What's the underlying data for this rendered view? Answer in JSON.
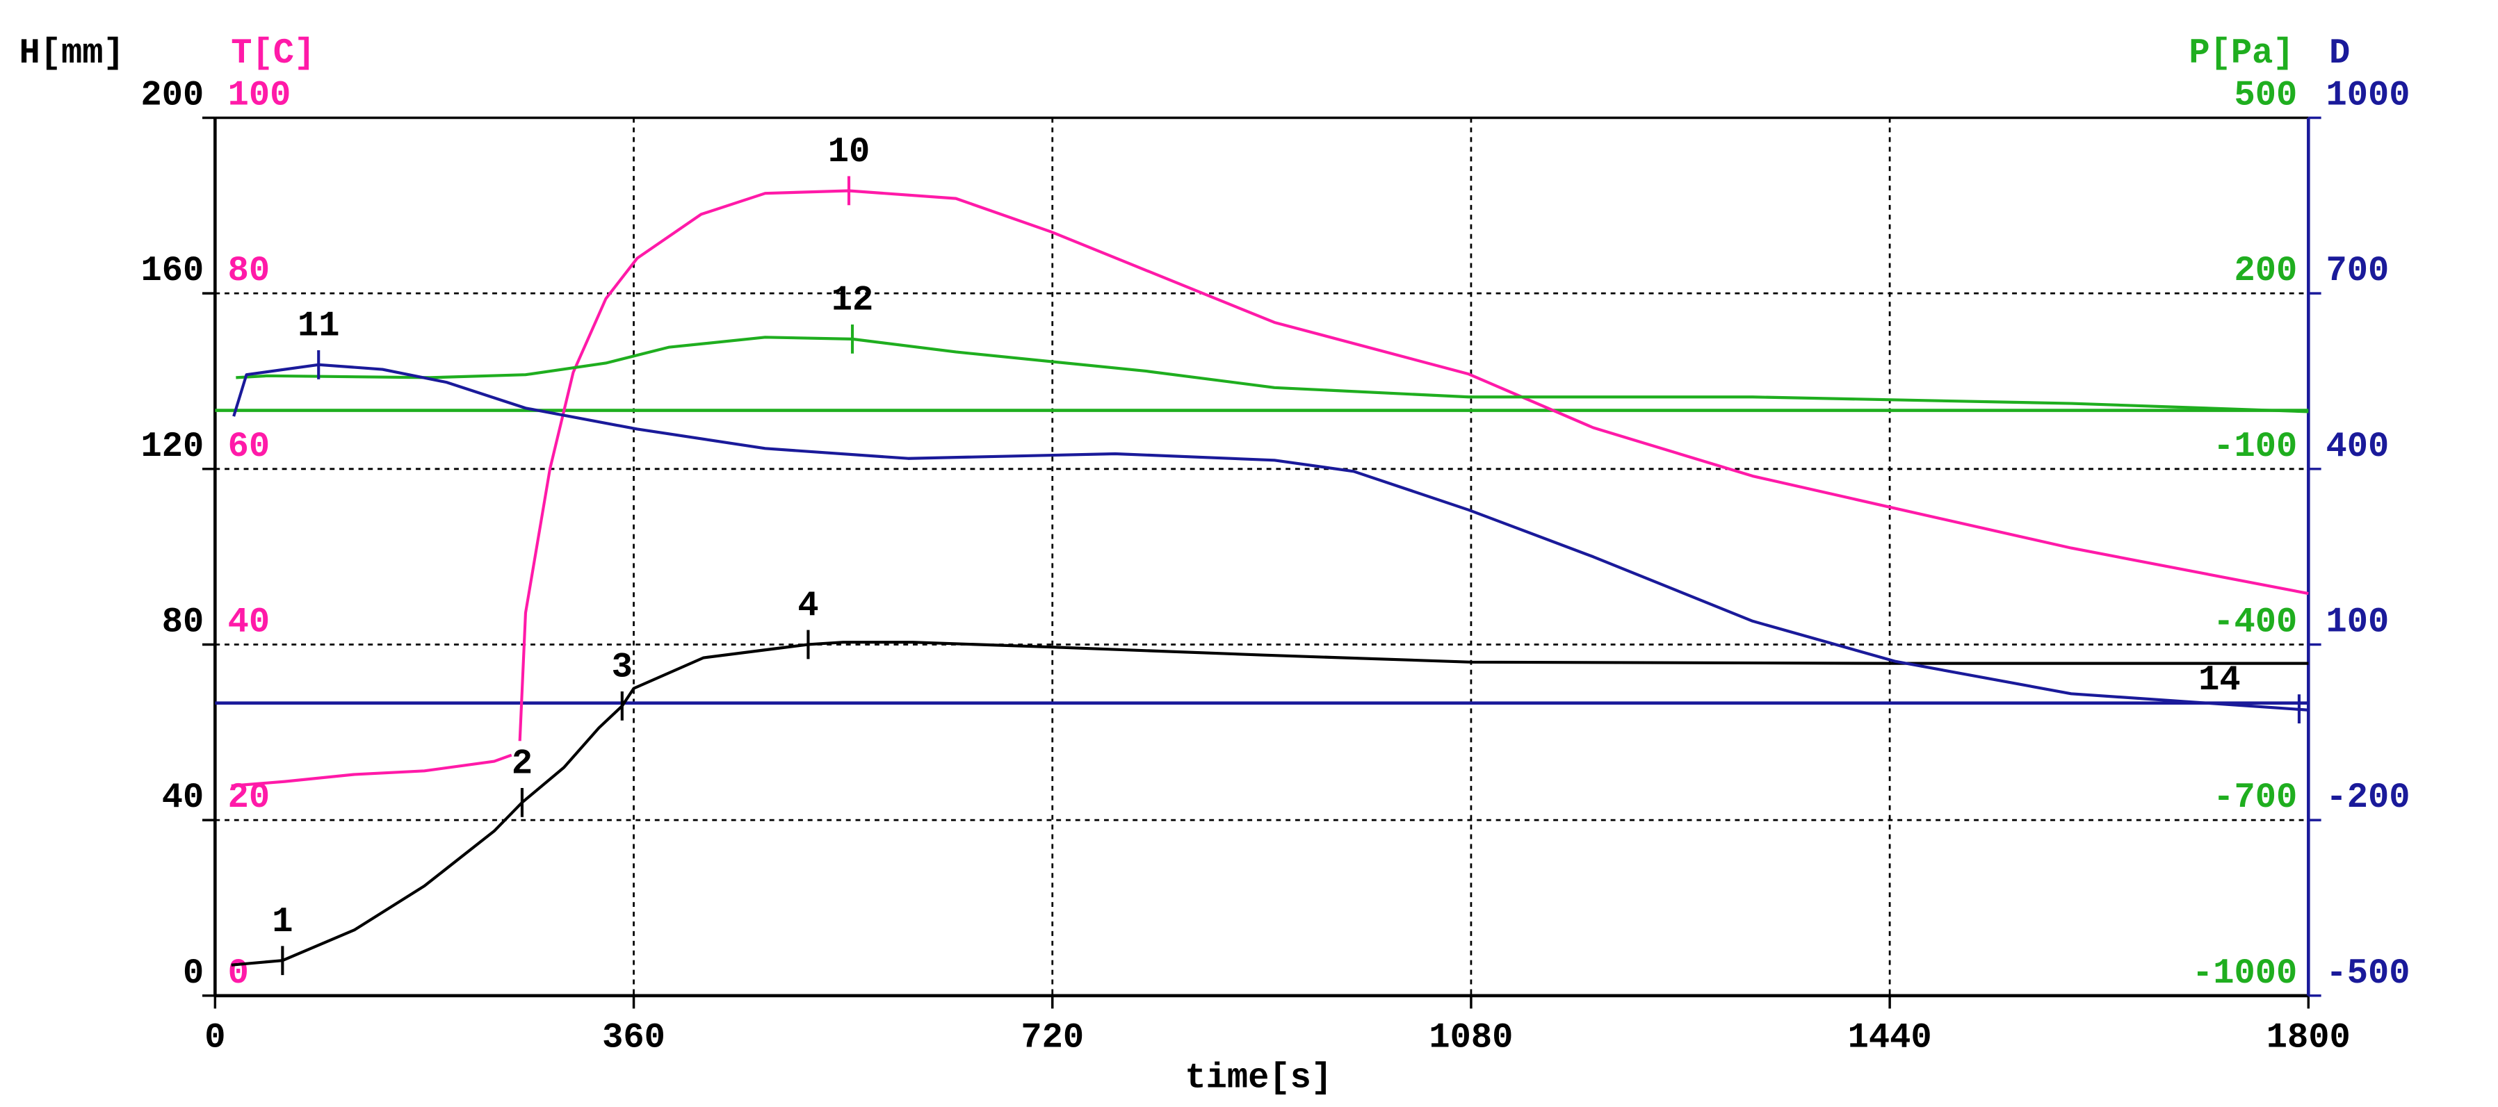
{
  "chart_data": {
    "type": "line",
    "x_label": "time[s]",
    "xlim": [
      0,
      1800
    ],
    "xticks": [
      0,
      360,
      720,
      1080,
      1440,
      1800
    ],
    "grid": true,
    "y_axes": [
      {
        "label": "H[mm]",
        "color": "#000000",
        "side": "left",
        "lim": [
          0,
          200
        ],
        "ticks": [
          0,
          40,
          80,
          120,
          160,
          200
        ]
      },
      {
        "label": "T[C]",
        "color": "#ff1aa8",
        "side": "left",
        "lim": [
          0,
          100
        ],
        "ticks": [
          0,
          20,
          40,
          60,
          80,
          100
        ]
      },
      {
        "label": "P[Pa]",
        "color": "#1fae1f",
        "side": "right",
        "lim": [
          -1000,
          500
        ],
        "ticks": [
          -1000,
          -700,
          -400,
          -100,
          200,
          500
        ]
      },
      {
        "label": "D",
        "color": "#1a1a9a",
        "side": "right",
        "lim": [
          -500,
          1000
        ],
        "ticks": [
          -500,
          -200,
          100,
          400,
          700,
          1000
        ]
      }
    ],
    "series": [
      {
        "axis": 0,
        "color": "#000000",
        "x": [
          14,
          58,
          120,
          180,
          240,
          264,
          300,
          330,
          350,
          360,
          420,
          480,
          510,
          540,
          600,
          720,
          900,
          1080,
          1440,
          1800
        ],
        "values": [
          7,
          8,
          15,
          25,
          37.5,
          44,
          52,
          61,
          66,
          70,
          77,
          79,
          80,
          80.5,
          80.5,
          79.4,
          77.6,
          76,
          75.7,
          75.7
        ]
      },
      {
        "axis": 1,
        "color": "#ff1aa8",
        "x": [
          14,
          60,
          120,
          180,
          240,
          255,
          258,
          262,
          267,
          288,
          308,
          336,
          363,
          418,
          473,
          545,
          637,
          719,
          911,
          1078,
          1185,
          1322,
          1445,
          1596,
          1800
        ],
        "values": [
          23.9,
          24.4,
          25.2,
          25.6,
          26.7,
          27.4,
          null,
          29,
          43.6,
          60,
          71,
          79.4,
          84,
          89,
          91.4,
          91.7,
          90.8,
          87,
          76.7,
          70.8,
          64.7,
          59.2,
          55.5,
          51,
          45.8
        ]
      },
      {
        "axis": 2,
        "color": "#1fae1f",
        "x": [
          18,
          45,
          185,
          267,
          336,
          390,
          473,
          548,
          637,
          801,
          911,
          1078,
          1322,
          1596,
          1800
        ],
        "values": [
          56,
          59,
          56,
          61,
          81,
          108,
          125,
          122,
          100,
          67,
          39,
          23,
          23,
          12,
          -2
        ]
      },
      {
        "axis": 3,
        "color": "#1a1a9a",
        "x": [
          16,
          27,
          89,
          144,
          199,
          267,
          363,
          473,
          596,
          774,
          911,
          979,
          1078,
          1185,
          1322,
          1445,
          1596,
          1800
        ],
        "values": [
          490,
          561,
          578,
          570,
          548,
          504,
          468,
          435,
          418,
          426,
          415,
          396,
          330,
          250,
          140,
          71,
          16,
          -12
        ]
      }
    ],
    "reference_lines": [
      {
        "axis": 2,
        "value": 0,
        "color": "#1fae1f"
      },
      {
        "axis": 3,
        "value": 0,
        "color": "#1a1a9a"
      }
    ],
    "markers": [
      {
        "label": "1",
        "series": 0,
        "x": 58,
        "y": 8
      },
      {
        "label": "2",
        "series": 0,
        "x": 264,
        "y": 44
      },
      {
        "label": "3",
        "series": 0,
        "x": 350,
        "y": 66
      },
      {
        "label": "4",
        "series": 0,
        "x": 510,
        "y": 80
      },
      {
        "label": "10",
        "series": 1,
        "x": 545,
        "y": 91.7
      },
      {
        "label": "11",
        "series": 3,
        "x": 89,
        "y": 578
      },
      {
        "label": "12",
        "series": 2,
        "x": 548,
        "y": 122
      },
      {
        "label": "14",
        "series": 3,
        "x": 1792,
        "y": -10
      }
    ]
  }
}
